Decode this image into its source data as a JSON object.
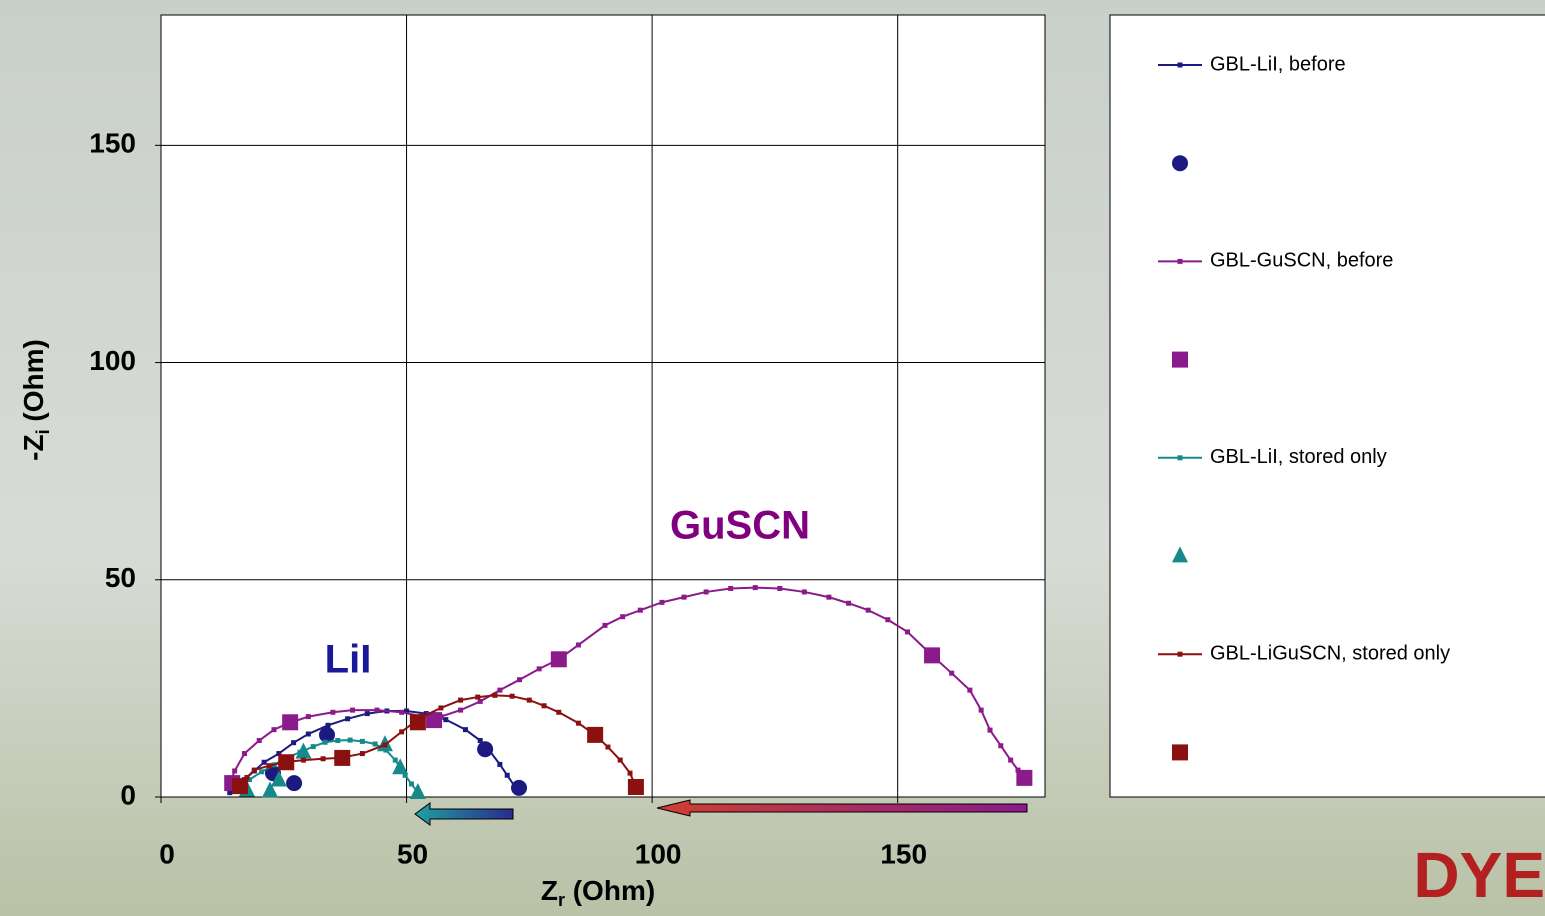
{
  "chart_data": {
    "type": "line",
    "annotations": [
      "GuSCN",
      "LiI"
    ],
    "annotation_colors": [
      "#800080",
      "#1a1a99"
    ],
    "x_label_parts": [
      "Z",
      "r",
      " (Ohm)"
    ],
    "y_label_parts": [
      "-Z",
      "i",
      " (Ohm)"
    ],
    "logo": "DYE",
    "xlim": [
      0,
      180
    ],
    "ylim": [
      0,
      180
    ],
    "xticks": [
      0,
      50,
      100,
      150
    ],
    "yticks": [
      0,
      50,
      100,
      150
    ],
    "grid": true,
    "legend": "right",
    "series": [
      {
        "name": "GBL-LiI, before",
        "color": "#1a1a80",
        "style": "line",
        "x": [
          14,
          15,
          17,
          19,
          21,
          24,
          27,
          30,
          34,
          38,
          42,
          46,
          50,
          54,
          58,
          62,
          65,
          67,
          69,
          70.5,
          72,
          73
        ],
        "values": [
          1,
          2,
          4,
          6,
          8,
          10,
          12.5,
          14.5,
          16.5,
          18,
          19.2,
          19.8,
          19.8,
          19.2,
          17.8,
          15.5,
          13,
          10.5,
          7.5,
          5,
          2.5,
          1.5
        ]
      },
      {
        "color": "#1a1a80",
        "style": "marker",
        "marker": "circle",
        "x": [
          22.8,
          27.1,
          33.8,
          66,
          72.9
        ],
        "values": [
          5.5,
          3.2,
          14.3,
          11,
          2.1
        ]
      },
      {
        "name": "GBL-GuSCN, before",
        "color": "#8b1a8b",
        "style": "line",
        "x": [
          14,
          15,
          17,
          20,
          23,
          26,
          30,
          35,
          39,
          44,
          49,
          53,
          57,
          61,
          65,
          69,
          73,
          77,
          81,
          85,
          90.4,
          94,
          97.6,
          102,
          106.5,
          111,
          116,
          121,
          126,
          131,
          136,
          140,
          144,
          148,
          152,
          157,
          161,
          164.7,
          167,
          168.8,
          171,
          173,
          174.5,
          175.8
        ],
        "values": [
          3,
          6,
          10,
          13,
          15.5,
          17,
          18.5,
          19.5,
          20,
          20,
          19.5,
          18.6,
          18.5,
          20,
          22,
          24.6,
          27,
          29.5,
          31.7,
          35,
          39.5,
          41.5,
          43,
          44.8,
          46,
          47.2,
          48,
          48.2,
          48,
          47.2,
          46,
          44.6,
          43,
          40.8,
          38,
          32.6,
          28.5,
          24.6,
          20,
          15.4,
          11.8,
          8.5,
          6.2,
          4.4
        ]
      },
      {
        "color": "#8b1a8b",
        "style": "marker",
        "marker": "square",
        "x": [
          14.5,
          26.3,
          55.6,
          81,
          157,
          175.8
        ],
        "values": [
          3.2,
          17.2,
          17.7,
          31.7,
          32.6,
          4.4
        ]
      },
      {
        "name": "GBL-LiI, stored only",
        "color": "#168a8a",
        "style": "line",
        "x": [
          15.7,
          18,
          20.5,
          23,
          25.5,
          28.3,
          31,
          33.4,
          36,
          38.5,
          41,
          43.6,
          45.8,
          47.7,
          49.7,
          51,
          52.3
        ],
        "values": [
          1.6,
          4,
          5.8,
          7.4,
          9,
          10.3,
          11.6,
          12.6,
          13,
          13.1,
          12.8,
          12.2,
          10.8,
          8.5,
          5,
          3,
          1
        ]
      },
      {
        "color": "#168a8a",
        "style": "marker",
        "marker": "triangle",
        "x": [
          17.5,
          22.2,
          24,
          29,
          45.6,
          48.7,
          52.3
        ],
        "values": [
          1.6,
          1.4,
          3.9,
          10.3,
          12,
          6.7,
          1
        ]
      },
      {
        "name": "GBL-LiGuSCN, stored only",
        "color": "#8b1010",
        "style": "line",
        "x": [
          16,
          17.5,
          19,
          22,
          25,
          29,
          33,
          36.5,
          41,
          45.6,
          49,
          52.7,
          57,
          61,
          64.5,
          68,
          71.5,
          75,
          78,
          81,
          85,
          88.4,
          91,
          93.5,
          95.5,
          96.7
        ],
        "values": [
          2.5,
          4.5,
          6.2,
          7.2,
          8,
          8.5,
          8.8,
          9,
          10,
          12,
          15,
          18.2,
          20.5,
          22.3,
          23,
          23.4,
          23.2,
          22.3,
          21,
          19.5,
          17,
          14.3,
          11.5,
          8.5,
          5.5,
          2.3
        ]
      },
      {
        "color": "#8b1010",
        "style": "marker",
        "marker": "square",
        "x": [
          16.1,
          25.5,
          36.9,
          52.3,
          88.4,
          96.7
        ],
        "values": [
          2.5,
          8,
          9,
          17.2,
          14.3,
          2.3
        ]
      }
    ]
  }
}
